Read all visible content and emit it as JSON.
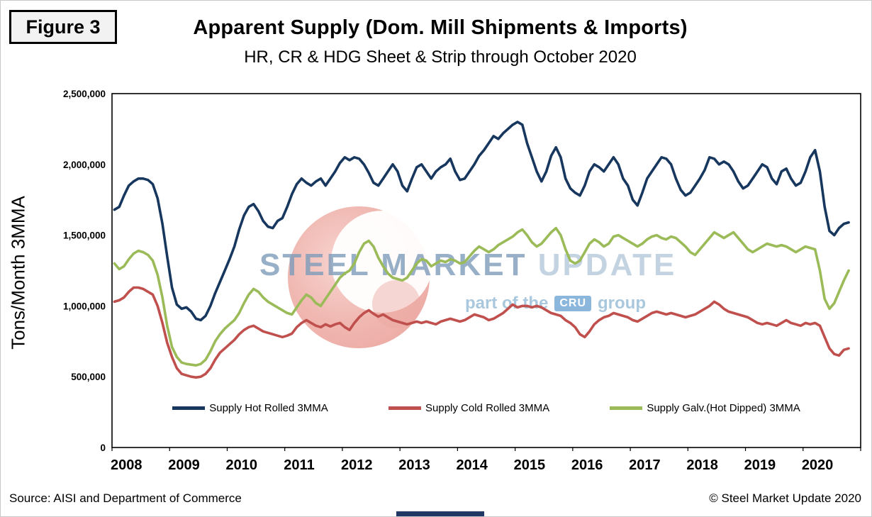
{
  "figure_label": "Figure 3",
  "title": "Apparent Supply (Dom. Mill Shipments & Imports)",
  "subtitle": "HR, CR & HDG Sheet & Strip through October 2020",
  "y_axis_title": "Tons/Month 3MMA",
  "footer": {
    "source": "Source: AISI and Department of Commerce",
    "copyright": "© Steel Market Update 2020"
  },
  "watermark": {
    "line1_strong": "STEEL",
    "line1_mid": "MARKET",
    "line1_light": "UPDATE",
    "line2_prefix": "part of the",
    "line2_box": "CRU",
    "line2_suffix": "group"
  },
  "chart_data": {
    "type": "line",
    "title": "Apparent Supply (Dom. Mill Shipments & Imports)",
    "subtitle": "HR, CR & HDG Sheet & Strip through October 2020",
    "ylabel": "Tons/Month 3MMA",
    "ylim": [
      0,
      2500000
    ],
    "y_tick_values": [
      0,
      500000,
      1000000,
      1500000,
      2000000,
      2500000
    ],
    "y_ticks": [
      "0",
      "500,000",
      "1,000,000",
      "1,500,000",
      "2,000,000",
      "2,500,000"
    ],
    "x_year_labels": [
      "2008",
      "2009",
      "2010",
      "2011",
      "2012",
      "2013",
      "2014",
      "2015",
      "2016",
      "2017",
      "2018",
      "2019",
      "2020"
    ],
    "x_start": "2008-01",
    "x_end": "2020-10",
    "axis_months": 156,
    "grid": false,
    "legend_position": "bottom-inside",
    "series": [
      {
        "name": "Supply Hot Rolled 3MMA",
        "color": "#17375E",
        "values": [
          1680000,
          1700000,
          1780000,
          1850000,
          1880000,
          1900000,
          1900000,
          1890000,
          1860000,
          1760000,
          1580000,
          1350000,
          1130000,
          1010000,
          980000,
          990000,
          960000,
          910000,
          900000,
          930000,
          1000000,
          1090000,
          1170000,
          1250000,
          1330000,
          1420000,
          1540000,
          1640000,
          1700000,
          1720000,
          1670000,
          1600000,
          1560000,
          1550000,
          1600000,
          1620000,
          1700000,
          1790000,
          1860000,
          1900000,
          1870000,
          1850000,
          1880000,
          1900000,
          1850000,
          1900000,
          1950000,
          2010000,
          2050000,
          2030000,
          2050000,
          2040000,
          2000000,
          1940000,
          1870000,
          1850000,
          1900000,
          1950000,
          2000000,
          1950000,
          1850000,
          1810000,
          1900000,
          1980000,
          2000000,
          1950000,
          1900000,
          1950000,
          1980000,
          2000000,
          2040000,
          1950000,
          1890000,
          1900000,
          1950000,
          2000000,
          2060000,
          2100000,
          2150000,
          2200000,
          2180000,
          2220000,
          2250000,
          2280000,
          2300000,
          2280000,
          2150000,
          2050000,
          1950000,
          1880000,
          1950000,
          2060000,
          2120000,
          2050000,
          1900000,
          1830000,
          1800000,
          1780000,
          1850000,
          1950000,
          2000000,
          1980000,
          1950000,
          2000000,
          2050000,
          2000000,
          1900000,
          1850000,
          1750000,
          1710000,
          1800000,
          1900000,
          1950000,
          2000000,
          2050000,
          2040000,
          2000000,
          1900000,
          1820000,
          1780000,
          1800000,
          1850000,
          1900000,
          1960000,
          2050000,
          2040000,
          2000000,
          2020000,
          2000000,
          1950000,
          1880000,
          1830000,
          1850000,
          1900000,
          1950000,
          2000000,
          1980000,
          1900000,
          1860000,
          1950000,
          1970000,
          1900000,
          1850000,
          1870000,
          1950000,
          2050000,
          2100000,
          1950000,
          1700000,
          1530000,
          1500000,
          1550000,
          1580000,
          1590000
        ]
      },
      {
        "name": "Supply Cold Rolled 3MMA",
        "color": "#C0504D",
        "values": [
          1030000,
          1040000,
          1060000,
          1100000,
          1130000,
          1130000,
          1120000,
          1100000,
          1080000,
          1000000,
          880000,
          740000,
          640000,
          560000,
          520000,
          510000,
          500000,
          495000,
          500000,
          520000,
          560000,
          620000,
          670000,
          700000,
          730000,
          760000,
          800000,
          830000,
          850000,
          860000,
          840000,
          820000,
          810000,
          800000,
          790000,
          780000,
          790000,
          805000,
          850000,
          880000,
          900000,
          880000,
          860000,
          850000,
          870000,
          855000,
          870000,
          880000,
          850000,
          830000,
          880000,
          920000,
          950000,
          970000,
          945000,
          925000,
          940000,
          920000,
          900000,
          890000,
          880000,
          870000,
          880000,
          890000,
          880000,
          890000,
          880000,
          870000,
          890000,
          900000,
          910000,
          900000,
          890000,
          900000,
          920000,
          940000,
          930000,
          920000,
          900000,
          910000,
          930000,
          950000,
          980000,
          1010000,
          990000,
          1000000,
          1000000,
          990000,
          1000000,
          990000,
          970000,
          950000,
          940000,
          930000,
          900000,
          880000,
          850000,
          800000,
          780000,
          820000,
          870000,
          900000,
          920000,
          930000,
          950000,
          940000,
          930000,
          920000,
          900000,
          890000,
          910000,
          930000,
          950000,
          960000,
          950000,
          940000,
          950000,
          940000,
          930000,
          920000,
          930000,
          940000,
          960000,
          980000,
          1000000,
          1030000,
          1010000,
          980000,
          960000,
          950000,
          940000,
          930000,
          920000,
          900000,
          880000,
          870000,
          880000,
          870000,
          860000,
          880000,
          900000,
          880000,
          870000,
          860000,
          880000,
          870000,
          880000,
          860000,
          780000,
          700000,
          660000,
          650000,
          690000,
          700000
        ]
      },
      {
        "name": "Supply Galv.(Hot Dipped) 3MMA",
        "color": "#9BBB59",
        "values": [
          1300000,
          1260000,
          1280000,
          1330000,
          1370000,
          1390000,
          1380000,
          1360000,
          1320000,
          1220000,
          1060000,
          860000,
          710000,
          640000,
          600000,
          590000,
          585000,
          580000,
          590000,
          620000,
          680000,
          750000,
          800000,
          840000,
          870000,
          900000,
          950000,
          1020000,
          1080000,
          1120000,
          1100000,
          1060000,
          1030000,
          1010000,
          990000,
          970000,
          950000,
          940000,
          990000,
          1040000,
          1080000,
          1060000,
          1020000,
          1000000,
          1050000,
          1100000,
          1150000,
          1200000,
          1230000,
          1250000,
          1300000,
          1380000,
          1440000,
          1460000,
          1420000,
          1340000,
          1280000,
          1230000,
          1200000,
          1190000,
          1180000,
          1200000,
          1250000,
          1300000,
          1330000,
          1320000,
          1280000,
          1300000,
          1320000,
          1310000,
          1330000,
          1320000,
          1300000,
          1310000,
          1350000,
          1390000,
          1420000,
          1400000,
          1380000,
          1400000,
          1430000,
          1450000,
          1470000,
          1490000,
          1520000,
          1540000,
          1500000,
          1450000,
          1420000,
          1440000,
          1480000,
          1520000,
          1550000,
          1500000,
          1400000,
          1320000,
          1300000,
          1320000,
          1380000,
          1440000,
          1470000,
          1450000,
          1420000,
          1440000,
          1490000,
          1500000,
          1480000,
          1460000,
          1440000,
          1420000,
          1440000,
          1470000,
          1490000,
          1500000,
          1480000,
          1470000,
          1490000,
          1480000,
          1450000,
          1420000,
          1380000,
          1360000,
          1400000,
          1440000,
          1480000,
          1520000,
          1500000,
          1480000,
          1500000,
          1520000,
          1480000,
          1440000,
          1400000,
          1380000,
          1400000,
          1420000,
          1440000,
          1430000,
          1420000,
          1430000,
          1420000,
          1400000,
          1380000,
          1400000,
          1420000,
          1410000,
          1400000,
          1250000,
          1050000,
          980000,
          1020000,
          1100000,
          1180000,
          1250000
        ]
      }
    ]
  }
}
